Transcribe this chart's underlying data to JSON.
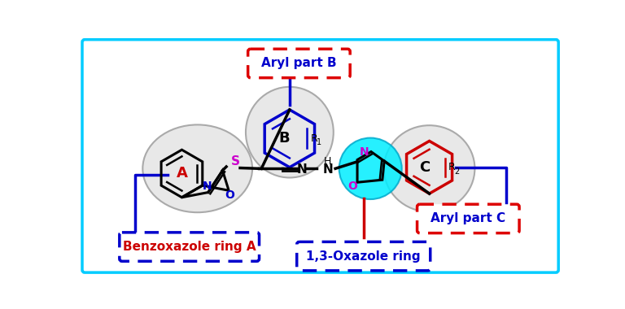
{
  "bg_color": "#ffffff",
  "outer_border_color": "#00ccff",
  "label_aryl_B": "Aryl part B",
  "label_aryl_C": "Aryl part C",
  "label_benz": "Benzoxazole ring A",
  "label_oxazole": "1,3-Oxazole ring",
  "box_color_red": "#dd0000",
  "box_color_blue": "#0000cc",
  "line_blue_color": "#0000cc",
  "line_red_color": "#cc0000",
  "magenta_color": "#cc00cc",
  "cyan_fill": "#00eeff",
  "gray_fill": "#e0e0e0",
  "gray_edge": "#aaaaaa",
  "black": "#000000",
  "red_label": "#cc0000"
}
